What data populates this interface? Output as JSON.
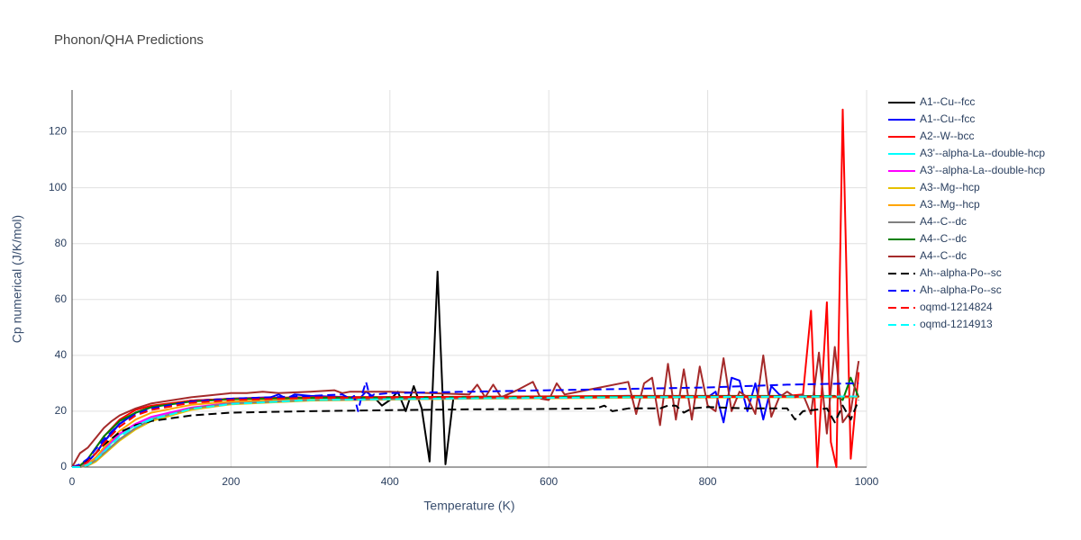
{
  "chart_data": {
    "type": "line",
    "title": "Phonon/QHA Predictions",
    "x_label": "Temperature (K)",
    "y_label": "Cp numerical (J/K/mol)",
    "xlim": [
      0,
      1000
    ],
    "ylim": [
      0,
      135
    ],
    "xticks": [
      0,
      200,
      400,
      600,
      800,
      1000
    ],
    "yticks": [
      0,
      20,
      40,
      60,
      80,
      100,
      120
    ],
    "grid": true,
    "legend": "right",
    "series": [
      {
        "name": "A1--Cu--fcc",
        "color": "#000000",
        "dash": "solid",
        "x": [
          0,
          10,
          20,
          30,
          40,
          50,
          60,
          80,
          100,
          150,
          200,
          300,
          370,
          380,
          390,
          400,
          410,
          420,
          430,
          440,
          450,
          460,
          470,
          480,
          500,
          700,
          900,
          990
        ],
        "values": [
          0,
          0.3,
          2,
          5,
          9,
          12.5,
          15.5,
          19.5,
          21.5,
          23.8,
          24.5,
          25,
          25,
          25,
          22,
          24,
          27,
          20,
          29,
          21,
          2,
          70,
          1,
          25,
          25,
          25,
          25,
          25
        ]
      },
      {
        "name": "A1--Cu--fcc",
        "color": "#0000ff",
        "dash": "solid",
        "x": [
          0,
          10,
          20,
          30,
          40,
          60,
          80,
          100,
          150,
          200,
          250,
          260,
          270,
          280,
          300,
          350,
          360,
          370,
          380,
          400,
          500,
          600,
          700,
          800,
          810,
          820,
          830,
          840,
          850,
          860,
          870,
          880,
          890,
          900,
          950,
          990
        ],
        "values": [
          0,
          0.3,
          2,
          5,
          9,
          15.5,
          19.5,
          21.5,
          23.8,
          24.5,
          25,
          26,
          24.5,
          26,
          25.5,
          25,
          24,
          27,
          25,
          25,
          25,
          25,
          25.5,
          25,
          27,
          16,
          32,
          31,
          20,
          30,
          17,
          29,
          26,
          25,
          25,
          25
        ]
      },
      {
        "name": "A2--W--bcc",
        "color": "#ff0000",
        "dash": "solid",
        "x": [
          0,
          10,
          20,
          30,
          40,
          60,
          80,
          100,
          150,
          200,
          300,
          500,
          700,
          900,
          920,
          930,
          938,
          950,
          955,
          962,
          970,
          980,
          990
        ],
        "values": [
          0,
          0.5,
          3,
          7,
          11,
          17,
          20.5,
          22,
          23.8,
          24.5,
          25,
          25.2,
          25.5,
          25.5,
          26,
          56,
          0,
          59,
          9,
          0,
          128,
          3,
          34
        ]
      },
      {
        "name": "A3'--alpha-La--double-hcp",
        "color": "#00ffff",
        "dash": "solid",
        "x": [
          0,
          10,
          20,
          30,
          40,
          60,
          80,
          100,
          150,
          200,
          300,
          500,
          700,
          900,
          990
        ],
        "values": [
          0,
          0.1,
          1,
          3,
          6,
          11.5,
          15,
          17.5,
          21,
          22.8,
          24,
          24.6,
          25,
          25.2,
          25.3
        ]
      },
      {
        "name": "A3'--alpha-La--double-hcp",
        "color": "#ff00ff",
        "dash": "solid",
        "x": [
          0,
          10,
          20,
          30,
          40,
          60,
          80,
          100,
          150,
          200,
          300,
          500,
          700,
          900,
          990
        ],
        "values": [
          0,
          0.1,
          1.2,
          3.5,
          6.5,
          12,
          15.5,
          18,
          21.3,
          23,
          24.1,
          24.7,
          25,
          25.2,
          25.3
        ]
      },
      {
        "name": "A3--Mg--hcp",
        "color": "#e6c000",
        "dash": "solid",
        "x": [
          0,
          10,
          20,
          30,
          40,
          60,
          80,
          100,
          150,
          200,
          300,
          500,
          700,
          900,
          990
        ],
        "values": [
          0,
          0,
          0.5,
          2,
          4.5,
          9.5,
          13.5,
          16.5,
          20.5,
          22.5,
          23.8,
          24.5,
          24.8,
          25,
          25
        ]
      },
      {
        "name": "A3--Mg--hcp",
        "color": "#ffa500",
        "dash": "solid",
        "x": [
          0,
          10,
          20,
          30,
          40,
          60,
          80,
          100,
          150,
          200,
          300,
          500,
          700,
          900,
          990
        ],
        "values": [
          0,
          0.1,
          1,
          3.5,
          7,
          13,
          17,
          19.5,
          22.3,
          23.5,
          24.2,
          24.6,
          24.9,
          25,
          25.1
        ]
      },
      {
        "name": "A4--C--dc",
        "color": "#808080",
        "dash": "solid",
        "x": [
          0,
          10,
          20,
          30,
          40,
          60,
          80,
          100,
          150,
          200,
          300,
          500,
          700,
          900,
          990
        ],
        "values": [
          0,
          0,
          0.6,
          2.5,
          5,
          10,
          14,
          17,
          21,
          22.8,
          24,
          24.6,
          25,
          25.2,
          25.3
        ]
      },
      {
        "name": "A4--C--dc",
        "color": "#008000",
        "dash": "solid",
        "x": [
          0,
          10,
          20,
          30,
          40,
          60,
          80,
          100,
          150,
          200,
          300,
          500,
          700,
          900,
          960,
          970,
          980,
          990
        ],
        "values": [
          0,
          0.5,
          3,
          7,
          11,
          16.5,
          19.5,
          21.5,
          23.5,
          24.3,
          24.8,
          25,
          25.2,
          25.4,
          25.5,
          24,
          32,
          25
        ]
      },
      {
        "name": "A4--C--dc",
        "color": "#a52a2a",
        "dash": "solid",
        "x": [
          0,
          10,
          20,
          30,
          40,
          50,
          60,
          80,
          100,
          150,
          200,
          220,
          240,
          260,
          300,
          330,
          340,
          350,
          400,
          500,
          510,
          520,
          530,
          540,
          560,
          580,
          590,
          600,
          610,
          620,
          700,
          710,
          720,
          730,
          740,
          750,
          760,
          770,
          780,
          790,
          800,
          810,
          820,
          830,
          840,
          850,
          860,
          870,
          880,
          890,
          900,
          910,
          920,
          930,
          940,
          950,
          960,
          970,
          980,
          990
        ],
        "values": [
          0,
          5,
          7,
          10.5,
          14,
          16.5,
          18.5,
          21,
          22.8,
          25,
          26.5,
          26.5,
          27,
          26.5,
          27,
          27.5,
          26.5,
          27,
          27,
          26,
          29.5,
          25,
          29.5,
          25,
          27.5,
          30.5,
          24.5,
          24,
          30,
          26,
          30.5,
          19,
          30,
          32,
          15,
          37,
          17,
          35,
          17,
          36,
          22,
          20,
          39,
          20,
          27,
          25,
          19,
          40,
          18,
          25,
          27,
          25,
          26,
          19,
          41,
          12,
          43,
          16,
          20,
          38
        ]
      },
      {
        "name": "Ah--alpha-Po--sc",
        "color": "#000000",
        "dash": "dash",
        "x": [
          0,
          10,
          20,
          30,
          40,
          60,
          80,
          100,
          150,
          200,
          300,
          400,
          500,
          600,
          660,
          670,
          680,
          700,
          740,
          750,
          760,
          770,
          780,
          800,
          850,
          900,
          910,
          920,
          950,
          960,
          970,
          980,
          990
        ],
        "values": [
          0,
          0.5,
          2.5,
          5,
          8,
          12.5,
          15,
          16.5,
          18.5,
          19.5,
          20,
          20.4,
          20.7,
          20.8,
          21,
          22,
          20,
          21,
          21,
          22,
          22,
          19.5,
          21,
          21.5,
          21,
          21,
          17,
          20,
          21,
          16,
          22,
          17,
          24
        ]
      },
      {
        "name": "Ah--alpha-Po--sc",
        "color": "#0000ff",
        "dash": "dash",
        "x": [
          0,
          10,
          20,
          30,
          40,
          60,
          80,
          100,
          150,
          200,
          300,
          340,
          350,
          355,
          360,
          365,
          370,
          375,
          380,
          400,
          500,
          600,
          700,
          800,
          900,
          990
        ],
        "values": [
          0,
          1,
          3,
          6.5,
          10,
          15.5,
          19,
          21,
          23.5,
          24.5,
          25.5,
          26,
          24.5,
          25.5,
          20,
          26,
          30.5,
          25,
          26,
          26.5,
          27,
          27.5,
          28,
          28.5,
          29.5,
          30
        ]
      },
      {
        "name": "oqmd-1214824",
        "color": "#ff0000",
        "dash": "dash",
        "x": [
          0,
          10,
          20,
          30,
          40,
          60,
          80,
          100,
          150,
          200,
          300,
          500,
          700,
          900,
          990
        ],
        "values": [
          0,
          0.3,
          2,
          5,
          8.5,
          14.5,
          18.5,
          20.5,
          23,
          24,
          24.8,
          25,
          25,
          25.2,
          25.3
        ]
      },
      {
        "name": "oqmd-1214913",
        "color": "#00ffff",
        "dash": "dash",
        "x": [
          0,
          10,
          20,
          30,
          40,
          60,
          80,
          100,
          150,
          200,
          300,
          500,
          700,
          900,
          990
        ],
        "values": [
          0,
          0,
          0.8,
          2.8,
          5.5,
          11,
          14.5,
          17,
          20.8,
          22.6,
          24,
          24.6,
          25,
          25.2,
          25.3
        ]
      }
    ]
  }
}
